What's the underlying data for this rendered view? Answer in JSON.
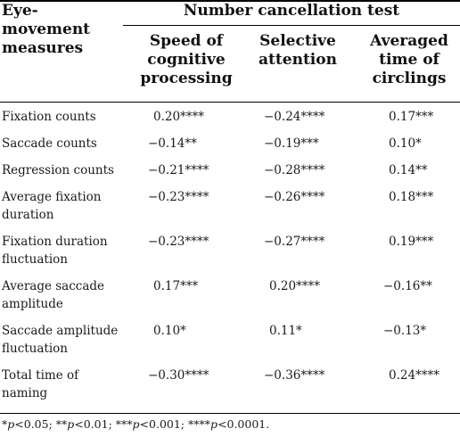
{
  "table": {
    "stub_header": "Eye-\nmovement\nmeasures",
    "group_header": "Number cancellation test",
    "columns": [
      "Speed of\ncognitive\nprocessing",
      "Selective\nattention",
      "Averaged\ntime of\ncirclings"
    ],
    "rows": [
      {
        "label": "Fixation counts",
        "values": [
          "0.20****",
          "−0.24****",
          "0.17***"
        ]
      },
      {
        "label": "Saccade counts",
        "values": [
          "−0.14**",
          "−0.19***",
          "0.10*"
        ]
      },
      {
        "label": "Regression counts",
        "values": [
          "−0.21****",
          "−0.28****",
          "0.14**"
        ]
      },
      {
        "label": "Average fixation\nduration",
        "values": [
          "−0.23****",
          "−0.26****",
          "0.18***"
        ]
      },
      {
        "label": "Fixation duration\nfluctuation",
        "values": [
          "−0.23****",
          "−0.27****",
          "0.19***"
        ]
      },
      {
        "label": "Average saccade\namplitude",
        "values": [
          "0.17***",
          "0.20****",
          "−0.16**"
        ]
      },
      {
        "label": "Saccade amplitude\nfluctuation",
        "values": [
          "0.10*",
          "0.11*",
          "−0.13*"
        ]
      },
      {
        "label": "Total time of\nnaming",
        "values": [
          "−0.30****",
          "−0.36****",
          "0.24****"
        ]
      }
    ],
    "footnote": "*p<0.05; **p<0.01; ***p<0.001; ****p<0.0001."
  }
}
